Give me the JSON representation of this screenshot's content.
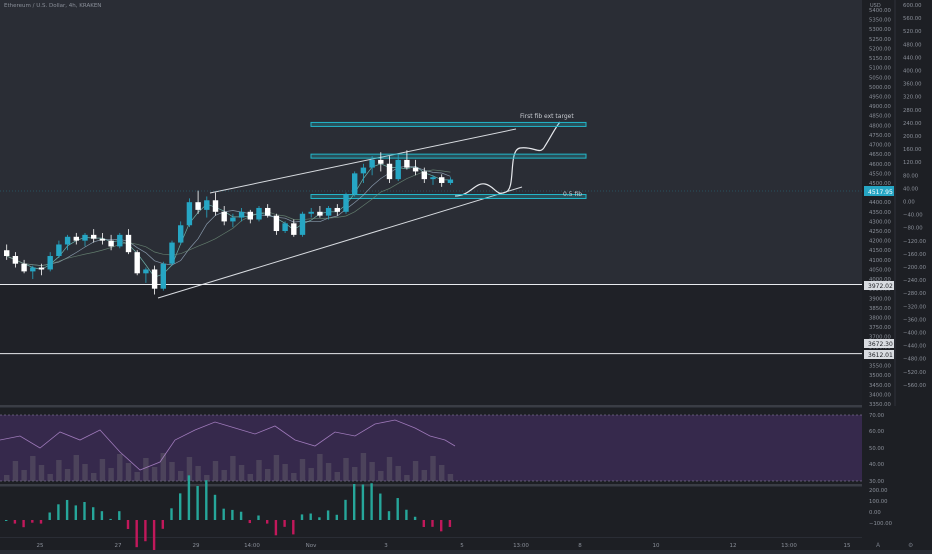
{
  "header": {
    "symbol_title": "Ethereum / U.S. Dollar, 4h, KRAKEN"
  },
  "colors": {
    "background": "#2a2d35",
    "up_candle": "#26a6c4",
    "down_candle": "#ffffff",
    "annotation_box": "#22b6c9",
    "oscillator_fill": "#3b2c54",
    "histogram_up": "#26a69a",
    "histogram_down": "#ef5350"
  },
  "price_axis": {
    "currency": "USD",
    "ticks": [
      "5400.00",
      "5350.00",
      "5300.00",
      "5250.00",
      "5200.00",
      "5150.00",
      "5100.00",
      "5050.00",
      "5000.00",
      "4950.00",
      "4900.00",
      "4850.00",
      "4800.00",
      "4750.00",
      "4700.00",
      "4650.00",
      "4600.00",
      "4550.00",
      "4500.00",
      "4450.00",
      "4400.00",
      "4350.00",
      "4300.00",
      "4250.00",
      "4200.00",
      "4150.00",
      "4100.00",
      "4050.00",
      "4000.00",
      "3950.00",
      "3900.00",
      "3850.00",
      "3800.00",
      "3750.00",
      "3700.00",
      "3650.00",
      "3600.00",
      "3550.00",
      "3500.00",
      "3450.00",
      "3400.00",
      "3350.00"
    ],
    "current_price_label": "4517.95",
    "level_labels": [
      "3972.02",
      "3672.30",
      "3612.01"
    ]
  },
  "secondary_axis": {
    "ticks": [
      "600.00",
      "560.00",
      "520.00",
      "480.00",
      "440.00",
      "400.00",
      "360.00",
      "320.00",
      "280.00",
      "240.00",
      "200.00",
      "160.00",
      "120.00",
      "80.00",
      "40.00",
      "0.00",
      "−40.00",
      "−80.00",
      "−120.00",
      "−160.00",
      "−200.00",
      "−240.00",
      "−280.00",
      "−320.00",
      "−360.00",
      "−400.00",
      "−440.00",
      "−480.00",
      "−520.00",
      "−560.00"
    ]
  },
  "rsi_axis": {
    "ticks": [
      "70.00",
      "60.00",
      "50.00",
      "40.00",
      "30.00"
    ]
  },
  "histogram_axis": {
    "ticks": [
      "200.00",
      "100.00",
      "0.00",
      "−100.00"
    ]
  },
  "time_axis": {
    "ticks": [
      "25",
      "27",
      "29",
      "14:00",
      "Nov",
      "3",
      "5",
      "13:00",
      "8",
      "10",
      "12",
      "13:00",
      "15"
    ]
  },
  "annotations": {
    "fib_ext_label": "First fib ext target",
    "fib_half_label": "0.5 fib"
  },
  "chart_data": {
    "type": "candlestick",
    "title": "Ethereum / U.S. Dollar, 4h, KRAKEN",
    "ylim": [
      3350,
      5400
    ],
    "candles": [
      [
        4150,
        4180,
        4100,
        4120
      ],
      [
        4120,
        4140,
        4060,
        4080
      ],
      [
        4080,
        4100,
        4030,
        4040
      ],
      [
        4040,
        4070,
        4000,
        4060
      ],
      [
        4060,
        4080,
        4020,
        4050
      ],
      [
        4050,
        4140,
        4040,
        4120
      ],
      [
        4120,
        4200,
        4110,
        4180
      ],
      [
        4180,
        4230,
        4150,
        4220
      ],
      [
        4220,
        4240,
        4180,
        4200
      ],
      [
        4200,
        4240,
        4170,
        4230
      ],
      [
        4230,
        4260,
        4190,
        4210
      ],
      [
        4210,
        4240,
        4180,
        4200
      ],
      [
        4200,
        4230,
        4150,
        4170
      ],
      [
        4170,
        4240,
        4160,
        4230
      ],
      [
        4230,
        4260,
        4130,
        4140
      ],
      [
        4140,
        4150,
        4020,
        4030
      ],
      [
        4030,
        4060,
        3980,
        4050
      ],
      [
        4050,
        4070,
        3920,
        3950
      ],
      [
        3950,
        4090,
        3940,
        4080
      ],
      [
        4080,
        4200,
        4070,
        4190
      ],
      [
        4190,
        4300,
        4180,
        4280
      ],
      [
        4280,
        4420,
        4270,
        4400
      ],
      [
        4400,
        4460,
        4340,
        4360
      ],
      [
        4360,
        4430,
        4320,
        4410
      ],
      [
        4410,
        4450,
        4330,
        4350
      ],
      [
        4350,
        4380,
        4280,
        4300
      ],
      [
        4300,
        4340,
        4270,
        4320
      ],
      [
        4320,
        4370,
        4300,
        4350
      ],
      [
        4350,
        4360,
        4290,
        4310
      ],
      [
        4310,
        4380,
        4300,
        4370
      ],
      [
        4370,
        4390,
        4320,
        4330
      ],
      [
        4330,
        4340,
        4230,
        4250
      ],
      [
        4250,
        4300,
        4240,
        4290
      ],
      [
        4290,
        4310,
        4220,
        4230
      ],
      [
        4230,
        4350,
        4220,
        4340
      ],
      [
        4340,
        4370,
        4320,
        4350
      ],
      [
        4350,
        4380,
        4320,
        4330
      ],
      [
        4330,
        4380,
        4310,
        4370
      ],
      [
        4370,
        4390,
        4330,
        4350
      ],
      [
        4350,
        4450,
        4340,
        4440
      ],
      [
        4440,
        4560,
        4430,
        4550
      ],
      [
        4550,
        4600,
        4500,
        4580
      ],
      [
        4580,
        4640,
        4540,
        4620
      ],
      [
        4620,
        4660,
        4560,
        4600
      ],
      [
        4600,
        4640,
        4500,
        4520
      ],
      [
        4520,
        4650,
        4510,
        4620
      ],
      [
        4620,
        4670,
        4570,
        4580
      ],
      [
        4580,
        4620,
        4540,
        4560
      ],
      [
        4560,
        4580,
        4500,
        4520
      ],
      [
        4520,
        4540,
        4490,
        4530
      ],
      [
        4530,
        4545,
        4480,
        4500
      ],
      [
        4500,
        4530,
        4490,
        4518
      ]
    ],
    "level_lines": [
      3972.02,
      3612.01
    ],
    "boxes": [
      {
        "label": "First fib ext target",
        "low": 4795,
        "high": 4815
      },
      {
        "label": "",
        "low": 4630,
        "high": 4650
      },
      {
        "label": "0.5 fib",
        "low": 4420,
        "high": 4440
      }
    ]
  }
}
